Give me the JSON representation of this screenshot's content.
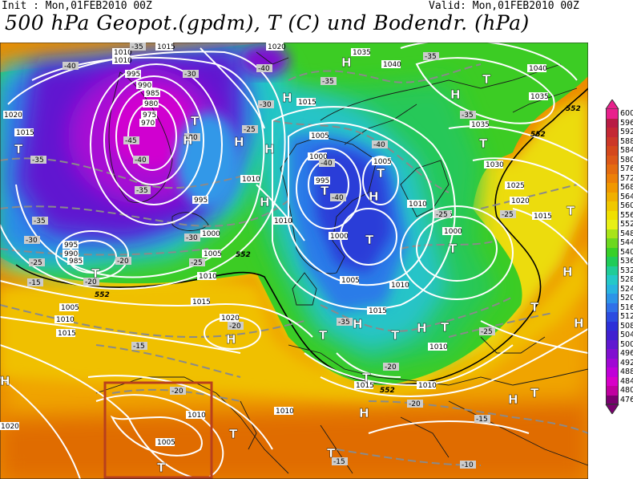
{
  "header": {
    "init": "Init : Mon,01FEB2010 00Z",
    "valid": "Valid: Mon,01FEB2010 00Z",
    "title": "500 hPa Geopot.(gpdm), T (C) und Bodendr. (hPa)"
  },
  "colors": {
    "purple": "#7a1fd0",
    "magenta": "#c000e0",
    "blue": "#2a4fd8",
    "cyan": "#28c8d0",
    "green": "#38d028",
    "yellow": "#f0e020",
    "orange": "#f0a000",
    "deep_orange": "#e06800",
    "box": "#c0381c"
  },
  "colorbar": {
    "levels": [
      {
        "label": "600",
        "color": "#e8208c"
      },
      {
        "label": "596",
        "color": "#b81c44"
      },
      {
        "label": "592",
        "color": "#c42834"
      },
      {
        "label": "588",
        "color": "#cc3828"
      },
      {
        "label": "584",
        "color": "#d4481c"
      },
      {
        "label": "580",
        "color": "#dc5818"
      },
      {
        "label": "576",
        "color": "#e46c10"
      },
      {
        "label": "572",
        "color": "#ec8008"
      },
      {
        "label": "568",
        "color": "#f09800"
      },
      {
        "label": "564",
        "color": "#f0b000"
      },
      {
        "label": "560",
        "color": "#f0c800"
      },
      {
        "label": "556",
        "color": "#f0e000"
      },
      {
        "label": "552",
        "color": "#e8f018"
      },
      {
        "label": "548",
        "color": "#a8e418"
      },
      {
        "label": "544",
        "color": "#6cd820"
      },
      {
        "label": "540",
        "color": "#38d028"
      },
      {
        "label": "536",
        "color": "#20cc58"
      },
      {
        "label": "532",
        "color": "#20cc98"
      },
      {
        "label": "528",
        "color": "#24c8c8"
      },
      {
        "label": "524",
        "color": "#28b4e0"
      },
      {
        "label": "520",
        "color": "#2c94e8"
      },
      {
        "label": "516",
        "color": "#3070e8"
      },
      {
        "label": "512",
        "color": "#2c4ce0"
      },
      {
        "label": "508",
        "color": "#2c30d8"
      },
      {
        "label": "504",
        "color": "#4020d0"
      },
      {
        "label": "500",
        "color": "#6018d0"
      },
      {
        "label": "496",
        "color": "#8010d0"
      },
      {
        "label": "492",
        "color": "#a008d4"
      },
      {
        "label": "488",
        "color": "#c000d8"
      },
      {
        "label": "484",
        "color": "#d800c8"
      },
      {
        "label": "480",
        "color": "#c000a0"
      },
      {
        "label": "476",
        "color": "#7a0070"
      }
    ]
  },
  "map": {
    "isobar_labels": [
      "1010",
      "1010",
      "1015",
      "1020",
      "995",
      "990",
      "985",
      "980",
      "975",
      "970",
      "1020",
      "1015",
      "1015",
      "1005",
      "1000",
      "995",
      "995",
      "1010",
      "1010",
      "1000",
      "1005",
      "1035",
      "1040",
      "1040",
      "1035",
      "1035",
      "1030",
      "1025",
      "1020",
      "1015",
      "1005",
      "1000",
      "1005",
      "1010",
      "1015",
      "1010",
      "1000",
      "1005",
      "1010",
      "1015",
      "1020",
      "995",
      "990",
      "985",
      "1010",
      "1015",
      "1010",
      "1010",
      "1015",
      "1005",
      "1010",
      "1020",
      "1005",
      "1010"
    ],
    "temp_labels": [
      "-40",
      "-35",
      "-30",
      "-30",
      "-25",
      "-40",
      "-35",
      "-40",
      "-45",
      "-35",
      "-30",
      "-25",
      "-20",
      "-35",
      "-30",
      "-25",
      "-20",
      "-15",
      "-40",
      "-40",
      "-40",
      "-35",
      "-35",
      "-30",
      "-35",
      "-25",
      "-25",
      "-20",
      "-15",
      "-20",
      "-20",
      "-15",
      "-10",
      "-15",
      "-20",
      "-25",
      "-35"
    ],
    "height_labels": [
      "552",
      "552",
      "552",
      "552",
      "552"
    ],
    "pressure_centers": [
      "T",
      "H",
      "T",
      "H",
      "H",
      "H",
      "H",
      "T",
      "T",
      "T",
      "T",
      "H",
      "H",
      "T",
      "H",
      "T",
      "T",
      "T",
      "H",
      "H",
      "T",
      "T",
      "H",
      "T",
      "T",
      "H",
      "H",
      "T",
      "T",
      "H",
      "T",
      "H",
      "T",
      "T",
      "H"
    ]
  }
}
